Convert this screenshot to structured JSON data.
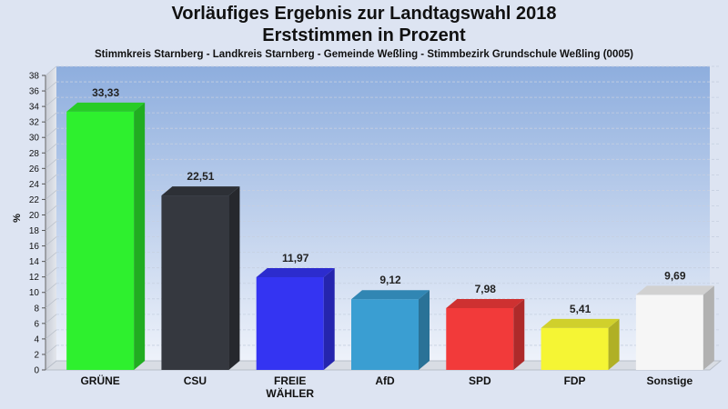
{
  "chart_data": {
    "type": "bar",
    "title": "Vorläufiges Ergebnis zur Landtagswahl 2018",
    "title_line2": "Erststimmen in Prozent",
    "subtitle": "Stimmkreis Starnberg - Landkreis Starnberg - Gemeinde Weßling - Stimmbezirk Grundschule Weßling (0005)",
    "ylabel": "%",
    "xlabel": "",
    "ylim": [
      0,
      38
    ],
    "ytick_step": 2,
    "grid": true,
    "categories": [
      [
        "GRÜNE"
      ],
      [
        "CSU"
      ],
      [
        "FREIE",
        "WÄHLER"
      ],
      [
        "AfD"
      ],
      [
        "SPD"
      ],
      [
        "FDP"
      ],
      [
        "Sonstige"
      ]
    ],
    "values": [
      33.33,
      22.51,
      11.97,
      9.12,
      7.98,
      5.41,
      9.69
    ],
    "value_labels": [
      "33,33",
      "22,51",
      "11,97",
      "9,12",
      "7,98",
      "5,41",
      "9,69"
    ],
    "colors": [
      "#2ef02e",
      "#35383f",
      "#3434f2",
      "#3a9ed2",
      "#f23a3a",
      "#f5f534",
      "#f6f6f6"
    ]
  }
}
